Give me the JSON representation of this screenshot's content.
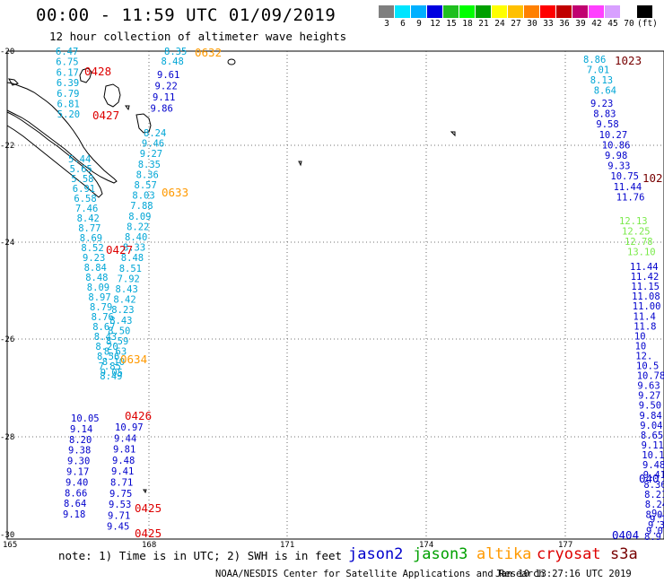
{
  "header": {
    "title": "00:00 - 11:59 UTC 01/09/2019",
    "subtitle": "12 hour collection of altimeter wave heights"
  },
  "colorbar": {
    "unit": "(ft)",
    "colors": [
      "#7f7f7f",
      "#00e5ff",
      "#00b0ff",
      "#0000e0",
      "#1fbf1f",
      "#00ff00",
      "#00a000",
      "#ffff00",
      "#ffc000",
      "#ff8000",
      "#ff0000",
      "#c00000",
      "#c00070",
      "#ff40ff",
      "#d8a0ff",
      "#ffffff",
      "#000000"
    ],
    "labels": [
      "3",
      "6",
      "9",
      "12",
      "15",
      "18",
      "21",
      "24",
      "27",
      "30",
      "33",
      "36",
      "39",
      "42",
      "45",
      "70",
      "(ft)"
    ]
  },
  "axes": {
    "lat_labels": [
      "-20",
      "-22",
      "-24",
      "-26",
      "-28",
      "-30"
    ],
    "lon_labels": [
      "165",
      "168",
      "171",
      "174",
      "177"
    ]
  },
  "colors": {
    "jason2": "#0000cc",
    "jason3": "#00a000",
    "altika": "#ff9900",
    "cryosat": "#dd0000",
    "s3a": "#770000",
    "cyan": "#00a6d6",
    "cyan_light": "#39c0e8",
    "light_green": "#7aea4a"
  },
  "time_labels": [
    {
      "text": "0632",
      "color": "#ff9900"
    },
    {
      "text": "0428",
      "color": "#dd0000"
    },
    {
      "text": "0427",
      "color": "#dd0000"
    },
    {
      "text": "0633",
      "color": "#ff9900"
    },
    {
      "text": "0427",
      "color": "#dd0000"
    },
    {
      "text": "0634",
      "color": "#ff9900"
    },
    {
      "text": "0426",
      "color": "#dd0000"
    },
    {
      "text": "0425",
      "color": "#dd0000"
    },
    {
      "text": "0425",
      "color": "#dd0000"
    },
    {
      "text": "1023",
      "color": "#770000"
    },
    {
      "text": "102",
      "color": "#770000"
    },
    {
      "text": "040",
      "color": "#0000cc"
    },
    {
      "text": "0404",
      "color": "#0000cc"
    }
  ],
  "tracks": {
    "track_a_cyan": {
      "color": "#00a6d6",
      "values": [
        "6.47",
        "6.75",
        "6.17",
        "6.39",
        "6.79",
        "6.81",
        "5.20"
      ]
    },
    "track_b_lower_left": {
      "color": "#00a6d6",
      "values": [
        "5.44",
        "5.65",
        "5.58",
        "6.91",
        "6.58",
        "7.46",
        "8.42",
        "8.77",
        "8.69",
        "8.52",
        "9.23",
        "8.84",
        "8.48",
        "8.09",
        "8.97",
        "8.79",
        "8.76",
        "8.67",
        "8.43",
        "8.20",
        "8.56",
        "7.85",
        "8.49"
      ]
    },
    "track_b_blue": {
      "color": "#0000cc",
      "values": [
        "10.05",
        "9.14",
        "8.20",
        "9.38",
        "9.30",
        "9.17",
        "9.40",
        "8.66",
        "8.64",
        "9.18"
      ]
    },
    "track_c_upper": {
      "color": "#00a6d6",
      "values": [
        "8.35",
        "8.48"
      ]
    },
    "track_c_blue": {
      "color": "#0000cc",
      "values": [
        "9.61",
        "9.22",
        "9.11",
        "9.86"
      ]
    },
    "track_c_lower": {
      "color": "#00a6d6",
      "values": [
        "8.24",
        "9.46",
        "9.27",
        "8.35",
        "8.36",
        "8.57",
        "8.03",
        "7.88",
        "8.09",
        "8.22",
        "8.40",
        "8.33",
        "8.48",
        "8.51",
        "7.92",
        "8.43",
        "8.42",
        "8.23",
        "8.43",
        "8.50",
        "8.59",
        "8.63",
        "8.10",
        "9.05"
      ]
    },
    "track_c_blue_lower": {
      "color": "#0000cc",
      "values": [
        "10.97",
        "9.44",
        "9.81",
        "9.48",
        "9.41",
        "8.71",
        "9.75",
        "9.53",
        "9.71",
        "9.45"
      ]
    },
    "track_d_top": {
      "color": "#00a6d6",
      "values": [
        "8.86",
        "7.01",
        "8.13",
        "8.64"
      ]
    },
    "track_d_blue": {
      "color": "#0000cc",
      "values": [
        "9.23",
        "8.83",
        "9.58",
        "10.27",
        "10.86",
        "9.98",
        "9.33",
        "10.75",
        "11.44",
        "11.76"
      ]
    },
    "track_d_green": {
      "color": "#7aea4a",
      "values": [
        "12.13",
        "12.25",
        "12.78",
        "13.10"
      ]
    },
    "track_d_blue2": {
      "color": "#0000cc",
      "values": [
        "11.44",
        "11.42",
        "11.15",
        "11.08",
        "11.00",
        "11.4",
        "11.8",
        "10",
        "10",
        "12.",
        "10.5",
        "10.78",
        "9.63",
        "9.27",
        "9.50",
        "9.84",
        "9.04",
        "8.65",
        "9.11",
        "10.19",
        "9.48",
        "9.41",
        "8.36",
        "8.21",
        "8.24",
        "8.07"
      ]
    },
    "track_e_corner": {
      "color": "#0000cc",
      "values": [
        "9.",
        "9.1",
        "9.3",
        "9.0",
        "8.9"
      ]
    }
  },
  "footer": {
    "note": "note: 1) Time is in UTC; 2) SWH is in feet",
    "legend": {
      "jason2": "jason2",
      "jason3": "jason3",
      "altika": "altika",
      "cryosat": "cryosat",
      "s3a": "s3a"
    },
    "credit": "NOAA/NESDIS Center for Satellite Applications and Research",
    "timestamp": "Jan 10 13:27:16 UTC 2019"
  }
}
